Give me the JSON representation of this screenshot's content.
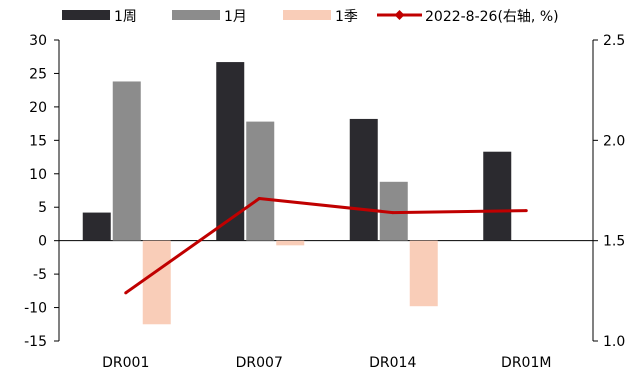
{
  "chart_data": {
    "type": "bar",
    "categories": [
      "DR001",
      "DR007",
      "DR014",
      "DR01M"
    ],
    "series": [
      {
        "name": "1周",
        "kind": "bar",
        "color": "#2b2a2f",
        "values": [
          4.2,
          26.7,
          18.2,
          13.3
        ]
      },
      {
        "name": "1月",
        "kind": "bar",
        "color": "#8c8c8c",
        "values": [
          23.8,
          17.8,
          8.8,
          0
        ]
      },
      {
        "name": "1季",
        "kind": "bar",
        "color": "#f9cdb8",
        "values": [
          -12.5,
          -0.7,
          -9.8,
          0
        ]
      },
      {
        "name": "2022-8-26(右轴, %)",
        "kind": "line",
        "axis": "right",
        "color": "#c00000",
        "values": [
          1.24,
          1.71,
          1.64,
          1.65
        ]
      }
    ],
    "y_left": {
      "min": -15,
      "max": 30,
      "ticks": [
        "30",
        "25",
        "20",
        "15",
        "10",
        "5",
        "0",
        "-5",
        "-10",
        "-15"
      ]
    },
    "y_right": {
      "min": 1.0,
      "max": 2.5,
      "ticks": [
        "2.5",
        "2.0",
        "1.5",
        "1.0"
      ]
    },
    "grid": false,
    "legend_position": "top"
  }
}
